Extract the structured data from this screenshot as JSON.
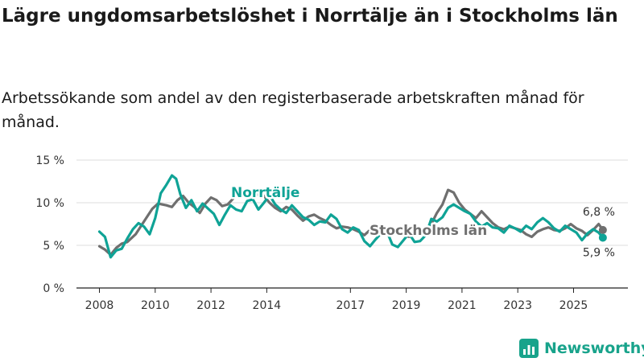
{
  "title": "Lägre ungdomsarbetslöshet i Norrtälje än i Stockholms län",
  "subtitle": "Arbetssökande som andel av den registerbaserade arbetskraften månad för månad.",
  "brand": {
    "name": "Newsworthy",
    "icon": "bar-chart-logo-icon"
  },
  "colors": {
    "norrtalje": "#0fa396",
    "stockholm": "#6f6f6f"
  },
  "chart_data": {
    "type": "line",
    "title": "Lägre ungdomsarbetslöshet i Norrtälje än i Stockholms län",
    "xlabel": "",
    "ylabel": "",
    "xlim": [
      2008,
      2026.2
    ],
    "ylim": [
      0,
      15
    ],
    "y_ticks": [
      0,
      5,
      10,
      15
    ],
    "y_tick_labels": [
      "0 %",
      "5 %",
      "10 %",
      "15 %"
    ],
    "x_ticks": [
      2008,
      2010,
      2012,
      2014,
      2017,
      2019,
      2021,
      2023,
      2025
    ],
    "grid": "horizontal",
    "legend": "inline labels",
    "series": [
      {
        "name": "Stockholms län",
        "color": "#6f6f6f",
        "end_label": "6,8 %",
        "points": [
          [
            2008.0,
            4.9
          ],
          [
            2008.2,
            4.5
          ],
          [
            2008.4,
            3.9
          ],
          [
            2008.6,
            4.7
          ],
          [
            2008.8,
            5.2
          ],
          [
            2009.0,
            5.4
          ],
          [
            2009.3,
            6.3
          ],
          [
            2009.6,
            7.8
          ],
          [
            2009.9,
            9.3
          ],
          [
            2010.1,
            9.9
          ],
          [
            2010.4,
            9.7
          ],
          [
            2010.6,
            9.5
          ],
          [
            2010.8,
            10.3
          ],
          [
            2011.0,
            10.8
          ],
          [
            2011.2,
            10.0
          ],
          [
            2011.4,
            9.5
          ],
          [
            2011.6,
            8.8
          ],
          [
            2011.8,
            9.9
          ],
          [
            2012.0,
            10.6
          ],
          [
            2012.2,
            10.3
          ],
          [
            2012.4,
            9.6
          ],
          [
            2012.6,
            9.8
          ],
          [
            2012.8,
            10.5
          ],
          [
            2013.0,
            11.2
          ],
          [
            2013.3,
            10.7
          ],
          [
            2013.6,
            11.0
          ],
          [
            2013.9,
            10.8
          ],
          [
            2014.1,
            10.0
          ],
          [
            2014.3,
            9.4
          ],
          [
            2014.5,
            9.0
          ],
          [
            2014.7,
            9.5
          ],
          [
            2014.9,
            9.2
          ],
          [
            2015.1,
            8.5
          ],
          [
            2015.3,
            7.9
          ],
          [
            2015.5,
            8.4
          ],
          [
            2015.7,
            8.6
          ],
          [
            2015.9,
            8.2
          ],
          [
            2016.1,
            7.9
          ],
          [
            2016.3,
            7.4
          ],
          [
            2016.5,
            7.0
          ],
          [
            2016.7,
            7.2
          ],
          [
            2016.9,
            7.1
          ],
          [
            2017.1,
            6.9
          ],
          [
            2017.3,
            6.6
          ],
          [
            2017.5,
            6.2
          ],
          [
            2017.7,
            6.8
          ],
          [
            2017.9,
            7.0
          ],
          [
            2018.1,
            6.8
          ],
          [
            2018.3,
            6.5
          ],
          [
            2018.5,
            6.3
          ],
          [
            2018.7,
            6.6
          ],
          [
            2018.9,
            6.2
          ],
          [
            2019.1,
            6.0
          ],
          [
            2019.3,
            6.2
          ],
          [
            2019.5,
            6.5
          ],
          [
            2019.7,
            6.8
          ],
          [
            2019.9,
            7.5
          ],
          [
            2020.1,
            8.8
          ],
          [
            2020.3,
            9.8
          ],
          [
            2020.5,
            11.5
          ],
          [
            2020.7,
            11.2
          ],
          [
            2020.9,
            10.0
          ],
          [
            2021.1,
            9.2
          ],
          [
            2021.3,
            8.7
          ],
          [
            2021.5,
            8.2
          ],
          [
            2021.7,
            9.0
          ],
          [
            2021.9,
            8.3
          ],
          [
            2022.1,
            7.6
          ],
          [
            2022.3,
            7.1
          ],
          [
            2022.5,
            6.9
          ],
          [
            2022.7,
            7.2
          ],
          [
            2022.9,
            7.0
          ],
          [
            2023.1,
            6.8
          ],
          [
            2023.3,
            6.3
          ],
          [
            2023.5,
            6.0
          ],
          [
            2023.7,
            6.6
          ],
          [
            2023.9,
            6.9
          ],
          [
            2024.1,
            7.1
          ],
          [
            2024.3,
            6.8
          ],
          [
            2024.5,
            6.7
          ],
          [
            2024.7,
            7.0
          ],
          [
            2024.9,
            7.5
          ],
          [
            2025.1,
            7.0
          ],
          [
            2025.3,
            6.7
          ],
          [
            2025.5,
            6.2
          ],
          [
            2025.7,
            6.8
          ],
          [
            2025.9,
            7.5
          ],
          [
            2026.05,
            6.8
          ]
        ]
      },
      {
        "name": "Norrtälje",
        "color": "#0fa396",
        "end_label": "5,9 %",
        "points": [
          [
            2008.0,
            6.6
          ],
          [
            2008.2,
            6.0
          ],
          [
            2008.4,
            3.6
          ],
          [
            2008.6,
            4.4
          ],
          [
            2008.8,
            4.6
          ],
          [
            2009.0,
            5.8
          ],
          [
            2009.2,
            6.9
          ],
          [
            2009.4,
            7.6
          ],
          [
            2009.6,
            7.2
          ],
          [
            2009.8,
            6.3
          ],
          [
            2010.0,
            8.2
          ],
          [
            2010.2,
            11.1
          ],
          [
            2010.4,
            12.1
          ],
          [
            2010.6,
            13.2
          ],
          [
            2010.75,
            12.8
          ],
          [
            2010.9,
            11.0
          ],
          [
            2011.1,
            9.4
          ],
          [
            2011.3,
            10.3
          ],
          [
            2011.5,
            9.0
          ],
          [
            2011.7,
            9.9
          ],
          [
            2011.9,
            9.3
          ],
          [
            2012.1,
            8.7
          ],
          [
            2012.3,
            7.4
          ],
          [
            2012.5,
            8.6
          ],
          [
            2012.7,
            9.7
          ],
          [
            2012.9,
            9.2
          ],
          [
            2013.1,
            9.0
          ],
          [
            2013.3,
            10.2
          ],
          [
            2013.5,
            10.4
          ],
          [
            2013.7,
            9.2
          ],
          [
            2013.9,
            10.0
          ],
          [
            2014.1,
            10.9
          ],
          [
            2014.3,
            9.8
          ],
          [
            2014.5,
            9.2
          ],
          [
            2014.7,
            8.8
          ],
          [
            2014.9,
            9.7
          ],
          [
            2015.1,
            9.0
          ],
          [
            2015.3,
            8.3
          ],
          [
            2015.5,
            8.0
          ],
          [
            2015.7,
            7.4
          ],
          [
            2015.9,
            7.8
          ],
          [
            2016.1,
            7.7
          ],
          [
            2016.3,
            8.6
          ],
          [
            2016.5,
            8.1
          ],
          [
            2016.7,
            6.9
          ],
          [
            2016.9,
            6.5
          ],
          [
            2017.1,
            7.1
          ],
          [
            2017.3,
            6.8
          ],
          [
            2017.5,
            5.5
          ],
          [
            2017.7,
            4.9
          ],
          [
            2017.9,
            5.7
          ],
          [
            2018.1,
            6.4
          ],
          [
            2018.3,
            6.7
          ],
          [
            2018.5,
            5.1
          ],
          [
            2018.7,
            4.8
          ],
          [
            2018.9,
            5.6
          ],
          [
            2019.1,
            6.4
          ],
          [
            2019.3,
            5.4
          ],
          [
            2019.5,
            5.5
          ],
          [
            2019.7,
            6.2
          ],
          [
            2019.9,
            8.1
          ],
          [
            2020.1,
            7.8
          ],
          [
            2020.3,
            8.3
          ],
          [
            2020.5,
            9.4
          ],
          [
            2020.7,
            9.8
          ],
          [
            2020.9,
            9.4
          ],
          [
            2021.1,
            9.0
          ],
          [
            2021.3,
            8.7
          ],
          [
            2021.5,
            7.8
          ],
          [
            2021.7,
            7.2
          ],
          [
            2021.9,
            7.6
          ],
          [
            2022.1,
            7.1
          ],
          [
            2022.3,
            7.0
          ],
          [
            2022.5,
            6.5
          ],
          [
            2022.7,
            7.3
          ],
          [
            2022.9,
            7.0
          ],
          [
            2023.1,
            6.6
          ],
          [
            2023.3,
            7.3
          ],
          [
            2023.5,
            6.9
          ],
          [
            2023.7,
            7.7
          ],
          [
            2023.9,
            8.2
          ],
          [
            2024.1,
            7.7
          ],
          [
            2024.3,
            7.0
          ],
          [
            2024.5,
            6.6
          ],
          [
            2024.7,
            7.3
          ],
          [
            2024.9,
            6.9
          ],
          [
            2025.1,
            6.5
          ],
          [
            2025.3,
            5.6
          ],
          [
            2025.5,
            6.4
          ],
          [
            2025.7,
            6.9
          ],
          [
            2025.9,
            6.5
          ],
          [
            2026.05,
            5.9
          ]
        ]
      }
    ],
    "annotations": [
      {
        "text": "Norrtälje",
        "series": "Norrtälje"
      },
      {
        "text": "Stockholms län",
        "series": "Stockholms län"
      }
    ]
  }
}
